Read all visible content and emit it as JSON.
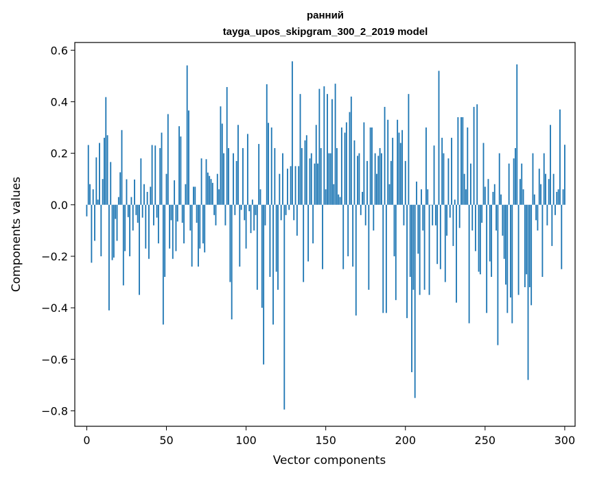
{
  "chart_data": {
    "type": "bar",
    "title": "ранний",
    "subtitle": "tayga_upos_skipgram_300_2_2019 model",
    "xlabel": "Vector components",
    "ylabel": "Components values",
    "xlim": [
      -7.5,
      306.5
    ],
    "ylim": [
      -0.86,
      0.63
    ],
    "xticks": [
      0,
      50,
      100,
      150,
      200,
      250,
      300
    ],
    "xtick_labels": [
      "0",
      "50",
      "100",
      "150",
      "200",
      "250",
      "300"
    ],
    "yticks": [
      -0.8,
      -0.6,
      -0.4,
      -0.2,
      0.0,
      0.2,
      0.4,
      0.6
    ],
    "ytick_labels": [
      "−0.8",
      "−0.6",
      "−0.4",
      "−0.2",
      "0.0",
      "0.2",
      "0.4",
      "0.6"
    ],
    "grid": false,
    "bar_color": "#1f77b4",
    "values": [
      -0.045,
      0.232,
      0.08,
      -0.225,
      0.06,
      -0.14,
      0.184,
      0.02,
      0.24,
      -0.2,
      0.1,
      0.26,
      0.418,
      0.27,
      -0.41,
      0.166,
      -0.215,
      -0.205,
      -0.055,
      -0.14,
      0.03,
      0.126,
      0.29,
      -0.313,
      -0.18,
      0.099,
      -0.048,
      -0.2,
      0.03,
      -0.1,
      0.098,
      -0.04,
      -0.07,
      -0.35,
      0.18,
      -0.05,
      0.08,
      -0.17,
      0.05,
      -0.21,
      0.07,
      0.232,
      -0.08,
      0.23,
      -0.05,
      -0.15,
      0.22,
      0.28,
      -0.465,
      -0.28,
      0.12,
      0.352,
      -0.17,
      -0.06,
      -0.21,
      0.095,
      -0.18,
      -0.065,
      0.305,
      0.265,
      -0.07,
      -0.15,
      0.08,
      0.541,
      0.366,
      -0.1,
      -0.24,
      0.07,
      0.07,
      -0.07,
      -0.24,
      -0.17,
      0.18,
      -0.15,
      -0.185,
      0.177,
      0.125,
      0.112,
      0.1,
      0.085,
      -0.04,
      -0.08,
      0.12,
      0.06,
      0.382,
      0.315,
      0.2,
      -0.08,
      0.457,
      0.22,
      -0.3,
      -0.445,
      0.2,
      -0.04,
      0.17,
      0.31,
      -0.24,
      -0.02,
      0.22,
      -0.06,
      -0.17,
      0.275,
      -0.025,
      -0.11,
      0.02,
      -0.1,
      -0.04,
      -0.33,
      0.236,
      0.06,
      -0.4,
      -0.62,
      -0.08,
      0.468,
      0.318,
      -0.28,
      0.3,
      -0.465,
      0.22,
      -0.26,
      -0.33,
      0.12,
      -0.06,
      0.2,
      -0.795,
      -0.04,
      0.14,
      -0.02,
      0.15,
      0.557,
      -0.06,
      0.15,
      -0.12,
      0.15,
      0.43,
      0.22,
      -0.3,
      0.25,
      0.27,
      -0.22,
      0.18,
      0.2,
      -0.15,
      0.16,
      0.31,
      0.16,
      0.45,
      0.22,
      -0.25,
      0.46,
      0.06,
      0.43,
      0.2,
      0.2,
      0.41,
      0.08,
      0.47,
      0.22,
      0.04,
      0.03,
      0.3,
      -0.25,
      0.28,
      0.32,
      -0.2,
      0.36,
      0.42,
      -0.24,
      0.25,
      -0.43,
      0.19,
      0.2,
      -0.04,
      0.05,
      0.32,
      -0.08,
      0.17,
      -0.33,
      0.3,
      0.3,
      -0.1,
      0.2,
      0.12,
      0.19,
      0.22,
      0.2,
      -0.42,
      0.38,
      -0.42,
      0.33,
      0.08,
      0.17,
      0.26,
      -0.2,
      -0.37,
      0.33,
      0.28,
      0.24,
      0.29,
      -0.08,
      0.17,
      -0.44,
      0.43,
      -0.28,
      -0.65,
      -0.33,
      -0.75,
      0.09,
      -0.19,
      -0.35,
      0.06,
      -0.1,
      -0.33,
      0.3,
      0.06,
      -0.35,
      0.0,
      -0.08,
      0.23,
      -0.08,
      -0.23,
      0.52,
      -0.25,
      0.26,
      0.2,
      -0.3,
      -0.12,
      0.18,
      -0.05,
      0.26,
      -0.16,
      0.02,
      -0.38,
      0.34,
      -0.09,
      0.34,
      0.34,
      0.12,
      0.06,
      0.3,
      -0.46,
      0.16,
      -0.1,
      0.38,
      -0.18,
      0.39,
      -0.26,
      -0.27,
      -0.07,
      0.24,
      0.07,
      -0.42,
      0.1,
      -0.22,
      -0.28,
      0.05,
      0.08,
      -0.1,
      -0.545,
      0.2,
      0.04,
      -0.12,
      -0.21,
      -0.31,
      -0.42,
      0.16,
      -0.36,
      -0.46,
      0.18,
      0.22,
      0.545,
      -0.35,
      0.1,
      0.16,
      0.06,
      -0.32,
      -0.27,
      -0.68,
      -0.32,
      -0.39,
      0.2,
      0.04,
      -0.06,
      -0.1,
      0.14,
      0.08,
      -0.28,
      0.2,
      0.12,
      -0.08,
      0.1,
      0.31,
      -0.16,
      0.12,
      -0.04,
      0.05,
      0.06,
      0.37,
      -0.25,
      0.06,
      0.233
    ]
  }
}
